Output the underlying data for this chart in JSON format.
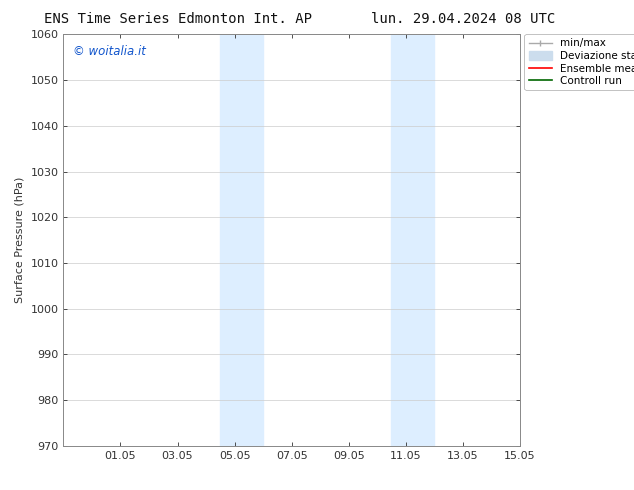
{
  "title_left": "ENS Time Series Edmonton Int. AP",
  "title_right": "lun. 29.04.2024 08 UTC",
  "ylabel": "Surface Pressure (hPa)",
  "ylim": [
    970,
    1060
  ],
  "yticks": [
    970,
    980,
    990,
    1000,
    1010,
    1020,
    1030,
    1040,
    1050,
    1060
  ],
  "xlim": [
    0,
    16
  ],
  "xtick_labels": [
    "01.05",
    "03.05",
    "05.05",
    "07.05",
    "09.05",
    "11.05",
    "13.05",
    "15.05"
  ],
  "xtick_positions": [
    2,
    4,
    6,
    8,
    10,
    12,
    14,
    16
  ],
  "shaded_regions": [
    {
      "start": 5.5,
      "end": 7.0
    },
    {
      "start": 11.5,
      "end": 13.0
    }
  ],
  "shaded_color": "#ddeeff",
  "watermark": "© woitalia.it",
  "watermark_color": "#1155cc",
  "legend_items": [
    {
      "label": "min/max"
    },
    {
      "label": "Deviazione standard"
    },
    {
      "label": "Ensemble mean run"
    },
    {
      "label": "Controll run"
    }
  ],
  "legend_colors": [
    "#aaaaaa",
    "#ccdded",
    "red",
    "green"
  ],
  "bg_color": "#ffffff",
  "spine_color": "#888888",
  "title_fontsize": 10,
  "label_fontsize": 8,
  "tick_fontsize": 8
}
